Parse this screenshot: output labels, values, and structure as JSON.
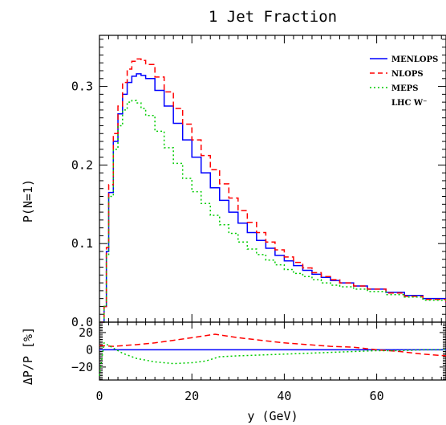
{
  "chart_data": [
    {
      "type": "line",
      "title": "1 Jet Fraction",
      "xlabel": "y (GeV)",
      "ylabel": "P(N=1)",
      "xlim": [
        0,
        75
      ],
      "ylim": [
        0,
        0.365
      ],
      "x_ticks": [
        "0",
        "20",
        "40",
        "60"
      ],
      "y_ticks": [
        "0.0",
        "0.1",
        "0.2",
        "0.3"
      ],
      "grid": false,
      "legend_position": "top-right",
      "annotation": "LHC W⁻",
      "series": [
        {
          "name": "MENLOPS",
          "color": "#0000ff",
          "style": "solid",
          "x": [
            0,
            1,
            1.5,
            2,
            3,
            4,
            5,
            6,
            7,
            8,
            9,
            10,
            12,
            14,
            16,
            18,
            20,
            22,
            24,
            26,
            28,
            30,
            32,
            34,
            36,
            38,
            40,
            42,
            44,
            46,
            48,
            50,
            52,
            55,
            58,
            62,
            66,
            70,
            75
          ],
          "y": [
            0.0,
            0.02,
            0.09,
            0.165,
            0.23,
            0.265,
            0.29,
            0.305,
            0.313,
            0.316,
            0.314,
            0.31,
            0.295,
            0.275,
            0.253,
            0.232,
            0.21,
            0.19,
            0.171,
            0.155,
            0.14,
            0.126,
            0.114,
            0.104,
            0.094,
            0.085,
            0.078,
            0.072,
            0.066,
            0.061,
            0.057,
            0.053,
            0.05,
            0.046,
            0.042,
            0.038,
            0.034,
            0.03,
            0.024
          ]
        },
        {
          "name": "NLOPS",
          "color": "#ff0000",
          "style": "dashed",
          "x": [
            0,
            1,
            1.5,
            2,
            3,
            4,
            5,
            6,
            7,
            8,
            9,
            10,
            12,
            14,
            16,
            18,
            20,
            22,
            24,
            26,
            28,
            30,
            32,
            34,
            36,
            38,
            40,
            42,
            44,
            46,
            48,
            50,
            52,
            55,
            58,
            62,
            66,
            70,
            75
          ],
          "y": [
            0.0,
            0.02,
            0.095,
            0.175,
            0.24,
            0.275,
            0.305,
            0.322,
            0.332,
            0.335,
            0.333,
            0.328,
            0.312,
            0.293,
            0.272,
            0.252,
            0.232,
            0.212,
            0.194,
            0.176,
            0.158,
            0.142,
            0.127,
            0.114,
            0.102,
            0.092,
            0.083,
            0.076,
            0.069,
            0.063,
            0.058,
            0.054,
            0.05,
            0.046,
            0.042,
            0.037,
            0.033,
            0.029,
            0.022
          ]
        },
        {
          "name": "MEPS",
          "color": "#00cc00",
          "style": "dotted",
          "x": [
            0,
            1,
            1.5,
            2,
            3,
            4,
            5,
            6,
            7,
            8,
            9,
            10,
            12,
            14,
            16,
            18,
            20,
            22,
            24,
            26,
            28,
            30,
            32,
            34,
            36,
            38,
            40,
            42,
            44,
            46,
            48,
            50,
            52,
            55,
            58,
            62,
            66,
            70,
            75
          ],
          "y": [
            0.0,
            0.02,
            0.085,
            0.16,
            0.22,
            0.25,
            0.27,
            0.28,
            0.282,
            0.279,
            0.272,
            0.263,
            0.243,
            0.222,
            0.202,
            0.183,
            0.166,
            0.151,
            0.136,
            0.124,
            0.113,
            0.102,
            0.093,
            0.086,
            0.079,
            0.073,
            0.067,
            0.062,
            0.058,
            0.054,
            0.05,
            0.047,
            0.045,
            0.042,
            0.039,
            0.035,
            0.032,
            0.028,
            0.024
          ]
        }
      ]
    },
    {
      "type": "line",
      "ylabel": "ΔP/P [%]",
      "xlabel": "y (GeV)",
      "xlim": [
        0,
        75
      ],
      "ylim": [
        -35,
        32
      ],
      "y_ticks": [
        "20",
        "0",
        "−20"
      ],
      "x_ticks": [
        "0",
        "20",
        "40",
        "60"
      ],
      "series": [
        {
          "name": "MENLOPS",
          "color": "#0000ff",
          "style": "solid",
          "x": [
            0,
            75
          ],
          "y": [
            0,
            0
          ]
        },
        {
          "name": "NLOPS",
          "color": "#ff0000",
          "style": "dashed",
          "x": [
            0,
            3,
            8,
            12,
            16,
            20,
            25,
            30,
            35,
            40,
            45,
            50,
            55,
            60,
            65,
            70,
            75
          ],
          "y": [
            5,
            4,
            6,
            8,
            11,
            14,
            18,
            14,
            11,
            8,
            6,
            4,
            3,
            0,
            -2,
            -5,
            -7
          ]
        },
        {
          "name": "MEPS",
          "color": "#00cc00",
          "style": "dotted",
          "x": [
            0,
            1,
            3,
            5,
            8,
            12,
            16,
            20,
            23,
            26,
            30,
            35,
            40,
            45,
            50,
            55,
            60,
            65,
            70,
            75
          ],
          "y": [
            -30,
            8,
            2,
            -4,
            -10,
            -14,
            -16,
            -15,
            -13,
            -8,
            -7,
            -6,
            -5,
            -4,
            -3,
            -2,
            -1,
            -1,
            0,
            0
          ]
        }
      ]
    }
  ]
}
